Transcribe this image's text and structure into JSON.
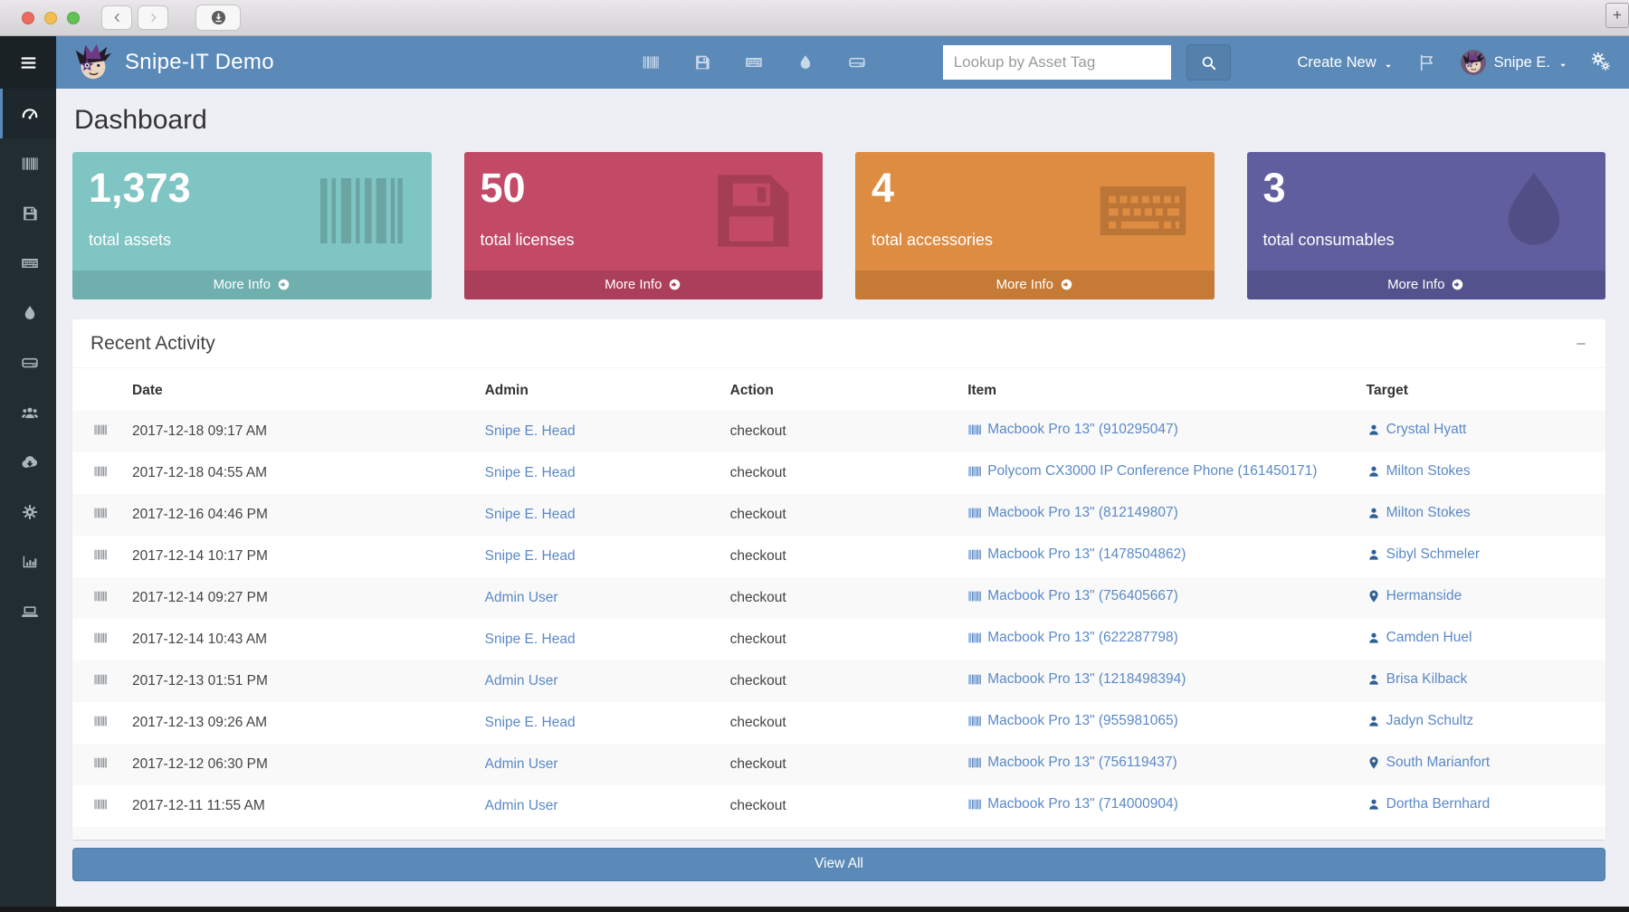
{
  "window_chrome": {
    "traffic_lights": [
      "close",
      "minimize",
      "zoom"
    ],
    "plus_label": "+"
  },
  "navbar": {
    "brand": "Snipe-IT Demo",
    "quick_links": [
      {
        "icon": "barcode-icon"
      },
      {
        "icon": "save-icon"
      },
      {
        "icon": "keyboard-icon"
      },
      {
        "icon": "tint-icon"
      },
      {
        "icon": "hdd-icon"
      }
    ],
    "search_placeholder": "Lookup by Asset Tag",
    "create_new_label": "Create New",
    "user_name": "Snipe E."
  },
  "sidebar": {
    "items": [
      {
        "icon": "tachometer-icon",
        "active": true
      },
      {
        "icon": "barcode-icon"
      },
      {
        "icon": "save-icon"
      },
      {
        "icon": "keyboard-icon"
      },
      {
        "icon": "tint-icon"
      },
      {
        "icon": "hdd-icon"
      },
      {
        "icon": "users-icon"
      },
      {
        "icon": "cloud-download-icon"
      },
      {
        "icon": "cog-icon"
      },
      {
        "icon": "chart-bar-icon"
      },
      {
        "icon": "laptop-icon"
      }
    ]
  },
  "page": {
    "title": "Dashboard"
  },
  "stat_cards": [
    {
      "value": "1,373",
      "label": "total assets",
      "more_label": "More Info",
      "icon": "barcode-icon",
      "color": "#7fc5c3",
      "footer_color": "#6fb0ae"
    },
    {
      "value": "50",
      "label": "total licenses",
      "more_label": "More Info",
      "icon": "save-icon",
      "color": "#c34a66",
      "footer_color": "#ab3f59"
    },
    {
      "value": "4",
      "label": "total accessories",
      "more_label": "More Info",
      "icon": "keyboard-icon",
      "color": "#de8c42",
      "footer_color": "#c57a36"
    },
    {
      "value": "3",
      "label": "total consumables",
      "more_label": "More Info",
      "icon": "tint-icon",
      "color": "#615e9f",
      "footer_color": "#54528c"
    }
  ],
  "activity": {
    "title": "Recent Activity",
    "columns": [
      "Date",
      "Admin",
      "Action",
      "Item",
      "Target"
    ],
    "rows": [
      {
        "date": "2017-12-18 09:17 AM",
        "admin": "Snipe E. Head",
        "action": "checkout",
        "item": "Macbook Pro 13\" (910295047)",
        "target": "Crystal Hyatt",
        "target_icon": "user-icon"
      },
      {
        "date": "2017-12-18 04:55 AM",
        "admin": "Snipe E. Head",
        "action": "checkout",
        "item": "Polycom CX3000 IP Conference Phone (161450171)",
        "target": "Milton Stokes",
        "target_icon": "user-icon"
      },
      {
        "date": "2017-12-16 04:46 PM",
        "admin": "Snipe E. Head",
        "action": "checkout",
        "item": "Macbook Pro 13\" (812149807)",
        "target": "Milton Stokes",
        "target_icon": "user-icon"
      },
      {
        "date": "2017-12-14 10:17 PM",
        "admin": "Snipe E. Head",
        "action": "checkout",
        "item": "Macbook Pro 13\" (1478504862)",
        "target": "Sibyl Schmeler",
        "target_icon": "user-icon"
      },
      {
        "date": "2017-12-14 09:27 PM",
        "admin": "Admin User",
        "action": "checkout",
        "item": "Macbook Pro 13\" (756405667)",
        "target": "Hermanside",
        "target_icon": "map-marker-icon"
      },
      {
        "date": "2017-12-14 10:43 AM",
        "admin": "Snipe E. Head",
        "action": "checkout",
        "item": "Macbook Pro 13\" (622287798)",
        "target": "Camden Huel",
        "target_icon": "user-icon"
      },
      {
        "date": "2017-12-13 01:51 PM",
        "admin": "Admin User",
        "action": "checkout",
        "item": "Macbook Pro 13\" (1218498394)",
        "target": "Brisa Kilback",
        "target_icon": "user-icon"
      },
      {
        "date": "2017-12-13 09:26 AM",
        "admin": "Snipe E. Head",
        "action": "checkout",
        "item": "Macbook Pro 13\" (955981065)",
        "target": "Jadyn Schultz",
        "target_icon": "user-icon"
      },
      {
        "date": "2017-12-12 06:30 PM",
        "admin": "Admin User",
        "action": "checkout",
        "item": "Macbook Pro 13\" (756119437)",
        "target": "South Marianfort",
        "target_icon": "map-marker-icon"
      },
      {
        "date": "2017-12-11 11:55 AM",
        "admin": "Admin User",
        "action": "checkout",
        "item": "Macbook Pro 13\" (714000904)",
        "target": "Dortha Bernhard",
        "target_icon": "user-icon"
      }
    ],
    "view_all_label": "View All"
  },
  "colors": {
    "navbar": "#5b8ab8",
    "sidebar": "#222d32",
    "sidebar_active": "#1e282c",
    "content_bg": "#edeff4",
    "link": "#5b89c6",
    "link_icon": "#2f5f94",
    "stripe": "#f9f9f9"
  }
}
